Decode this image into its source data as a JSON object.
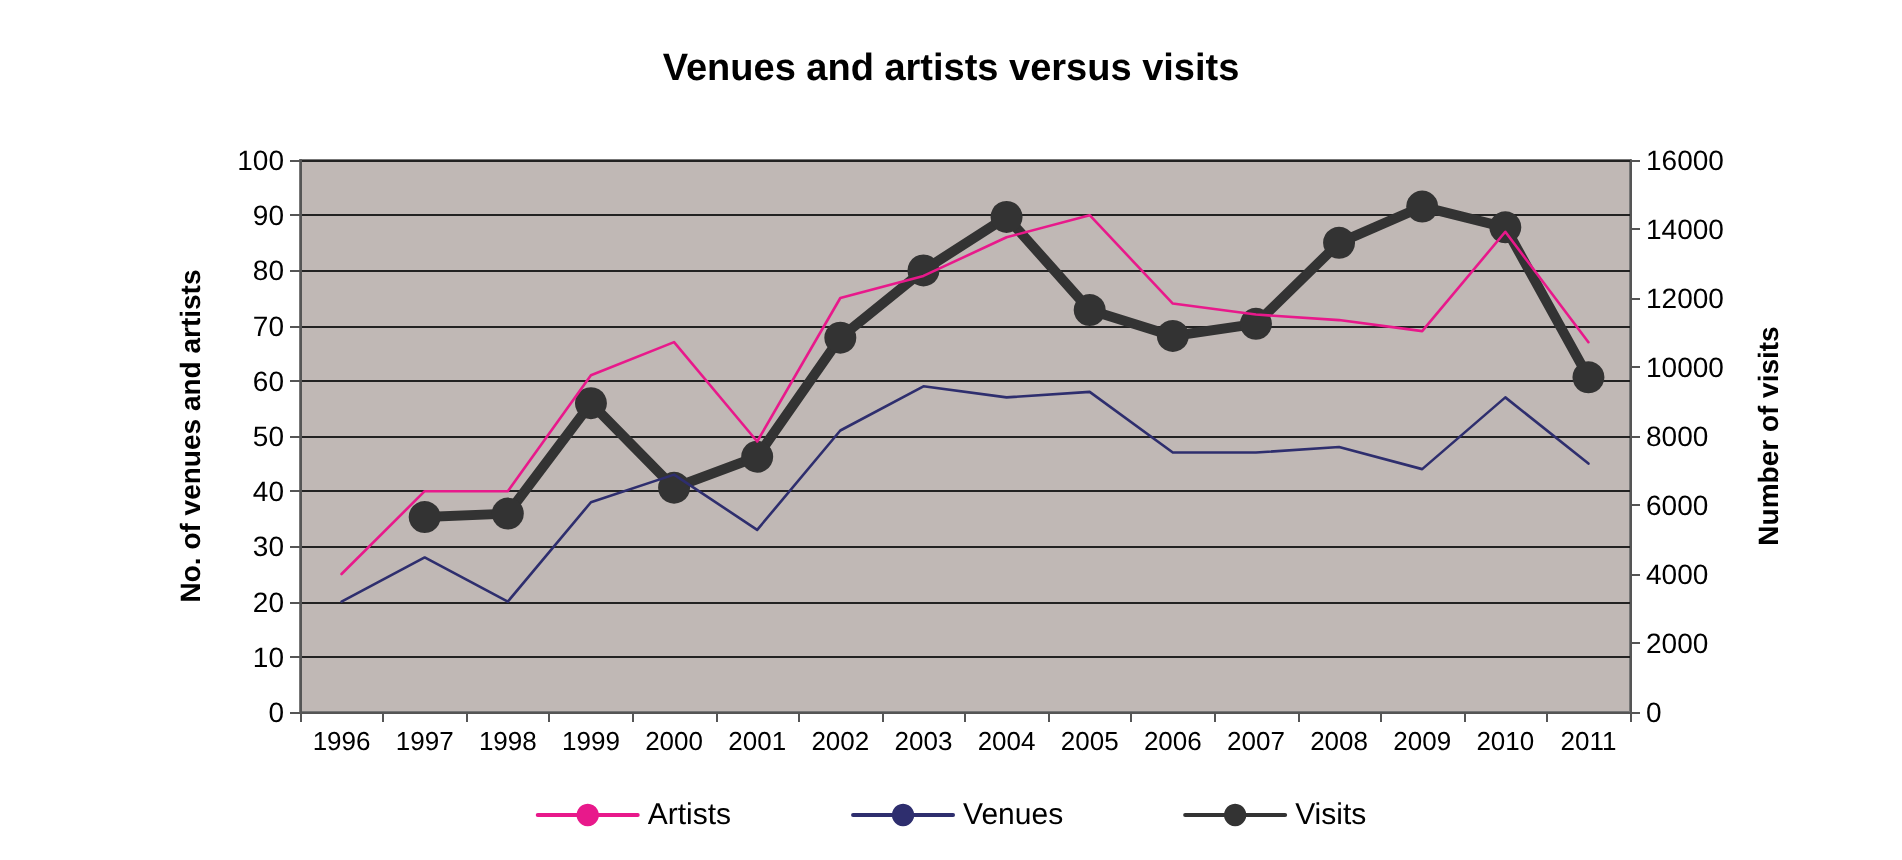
{
  "chart_data": {
    "type": "line",
    "title": "Venues and artists versus visits",
    "categories": [
      "1996",
      "1997",
      "1998",
      "1999",
      "2000",
      "2001",
      "2002",
      "2003",
      "2004",
      "2005",
      "2006",
      "2007",
      "2008",
      "2009",
      "2010",
      "2011"
    ],
    "ylabel": "No. of venues and artists",
    "y2label": "Number of visits",
    "ylim": [
      0,
      100
    ],
    "yticks": [
      0,
      10,
      20,
      30,
      40,
      50,
      60,
      70,
      80,
      90,
      100
    ],
    "y2lim": [
      0,
      16000
    ],
    "y2ticks": [
      0,
      2000,
      4000,
      6000,
      8000,
      10000,
      12000,
      14000,
      16000
    ],
    "grid": "y",
    "legend": "bottom",
    "series": [
      {
        "name": "Artists",
        "color": "#e8198b",
        "marker": "none",
        "values": [
          25,
          40,
          40,
          61,
          67,
          49,
          75,
          79,
          86,
          90,
          74,
          72,
          71,
          69,
          87,
          67
        ]
      },
      {
        "name": "Venues",
        "color": "#2e2e6e",
        "marker": "none",
        "values": [
          20,
          28,
          20,
          38,
          43,
          33,
          51,
          59,
          57,
          58,
          47,
          47,
          48,
          44,
          57,
          45
        ]
      },
      {
        "name": "Visits",
        "color": "#333333",
        "marker": "circle",
        "axis": "y2",
        "values": [
          null,
          5650,
          5750,
          8950,
          6500,
          7400,
          10850,
          12800,
          14350,
          11650,
          10900,
          11250,
          13600,
          14650,
          14050,
          9700
        ]
      }
    ]
  }
}
